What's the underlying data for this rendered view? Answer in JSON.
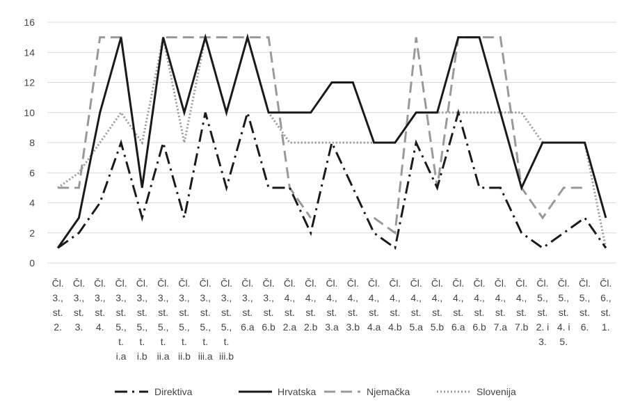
{
  "chart_data": {
    "type": "line",
    "title": "",
    "xlabel": "",
    "ylabel": "",
    "ylim": [
      0,
      16
    ],
    "yticks": [
      0,
      2,
      4,
      6,
      8,
      10,
      12,
      14,
      16
    ],
    "grid": "horizontal",
    "legend_position": "bottom",
    "categories": [
      "Čl. 3., st. 2.",
      "Čl. 3., st. 3.",
      "Čl. 3., st. 4.",
      "Čl. 3., st. 5., t. i.a",
      "Čl. 3., st. 5., t. i.b",
      "Čl. 3., st. 5., t. ii.a",
      "Čl. 3., st. 5., t. ii.b",
      "Čl. 3., st. 5., t. iii.a",
      "Čl. 3., st. 5., t. iii.b",
      "Čl. 3., st. 6.a",
      "Čl. 3., st. 6.b",
      "Čl. 4., st. 2.a",
      "Čl. 4., st. 2.b",
      "Čl. 4., st. 3.a",
      "Čl. 4., st. 3.b",
      "Čl. 4., st. 4.a",
      "Čl. 4., st. 4.b",
      "Čl. 4., st. 5.a",
      "Čl. 4., st. 5.b",
      "Čl. 4., st. 6.a",
      "Čl. 4., st. 6.b",
      "Čl. 4., st. 7.a",
      "Čl. 4., st. 7.b",
      "Čl. 5., st. 2. i 3.",
      "Čl. 5., st. 4. i 5.",
      "Čl. 5., st. 6.",
      "Čl. 6., st. 1."
    ],
    "category_lines": [
      [
        "Čl.",
        "3.,",
        "st.",
        "2."
      ],
      [
        "Čl.",
        "3.,",
        "st.",
        "3."
      ],
      [
        "Čl.",
        "3.,",
        "st.",
        "4."
      ],
      [
        "Čl.",
        "3.,",
        "st.",
        "5.,",
        "t.",
        "i.a"
      ],
      [
        "Čl.",
        "3.,",
        "st.",
        "5.,",
        "t.",
        "i.b"
      ],
      [
        "Čl.",
        "3.,",
        "st.",
        "5.,",
        "t.",
        "ii.a"
      ],
      [
        "Čl.",
        "3.,",
        "st.",
        "5.,",
        "t.",
        "ii.b"
      ],
      [
        "Čl.",
        "3.,",
        "st.",
        "5.,",
        "t.",
        "iii.a"
      ],
      [
        "Čl.",
        "3.,",
        "st.",
        "5.,",
        "t.",
        "iii.b"
      ],
      [
        "Čl.",
        "3.,",
        "st.",
        "6.a"
      ],
      [
        "Čl.",
        "3.,",
        "st.",
        "6.b"
      ],
      [
        "Čl.",
        "4.,",
        "st.",
        "2.a"
      ],
      [
        "Čl.",
        "4.,",
        "st.",
        "2.b"
      ],
      [
        "Čl.",
        "4.,",
        "st.",
        "3.a"
      ],
      [
        "Čl.",
        "4.,",
        "st.",
        "3.b"
      ],
      [
        "Čl.",
        "4.,",
        "st.",
        "4.a"
      ],
      [
        "Čl.",
        "4.,",
        "st.",
        "4.b"
      ],
      [
        "Čl.",
        "4.,",
        "st.",
        "5.a"
      ],
      [
        "Čl.",
        "4.,",
        "st.",
        "5.b"
      ],
      [
        "Čl.",
        "4.,",
        "st.",
        "6.a"
      ],
      [
        "Čl.",
        "4.,",
        "st.",
        "6.b"
      ],
      [
        "Čl.",
        "4.,",
        "st.",
        "7.a"
      ],
      [
        "Čl.",
        "4.,",
        "st.",
        "7.b"
      ],
      [
        "Čl.",
        "5.,",
        "st.",
        "2. i",
        "3."
      ],
      [
        "Čl.",
        "5.,",
        "st.",
        "4. i",
        "5."
      ],
      [
        "Čl.",
        "5.,",
        "st.",
        "6."
      ],
      [
        "Čl.",
        "6.,",
        "st.",
        "1."
      ]
    ],
    "series": [
      {
        "name": "Direktiva",
        "style": "dash-dot",
        "color": "#1a1a1a",
        "values": [
          1,
          2,
          4,
          8,
          3,
          8,
          3,
          10,
          5,
          10,
          5,
          5,
          2,
          8,
          5,
          2,
          1,
          8,
          5,
          10,
          5,
          5,
          2,
          1,
          2,
          3,
          1
        ]
      },
      {
        "name": "Hrvatska",
        "style": "solid",
        "color": "#1a1a1a",
        "values": [
          1,
          3,
          10,
          15,
          5,
          15,
          10,
          15,
          10,
          15,
          10,
          10,
          10,
          12,
          12,
          8,
          8,
          10,
          10,
          15,
          15,
          10,
          5,
          8,
          8,
          8,
          3
        ]
      },
      {
        "name": "Njemačka",
        "style": "long-dash",
        "color": "#999999",
        "values": [
          5,
          5,
          15,
          15,
          5,
          15,
          15,
          15,
          15,
          15,
          15,
          5,
          3,
          null,
          null,
          3,
          2,
          15,
          5,
          15,
          15,
          15,
          5,
          3,
          5,
          5,
          null
        ]
      },
      {
        "name": "Slovenija",
        "style": "dotted",
        "color": "#999999",
        "values": [
          5,
          6,
          8,
          10,
          8,
          15,
          8,
          15,
          10,
          15,
          10,
          8,
          8,
          8,
          8,
          8,
          8,
          10,
          10,
          10,
          10,
          10,
          10,
          8,
          8,
          8,
          1
        ]
      }
    ]
  }
}
